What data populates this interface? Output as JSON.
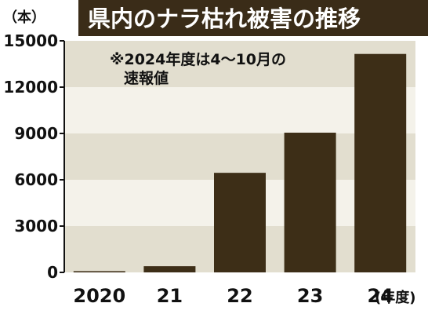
{
  "chart_data": {
    "type": "bar",
    "title": "県内のナラ枯れ被害の推移",
    "unit_label": "（本）",
    "x_unit_label": "(年度)",
    "categories": [
      "2020",
      "21",
      "22",
      "23",
      "24"
    ],
    "values": [
      80,
      400,
      6450,
      9050,
      14150
    ],
    "ylim": [
      0,
      15000
    ],
    "yticks": [
      0,
      3000,
      6000,
      9000,
      12000,
      15000
    ],
    "ytick_labels": [
      "0",
      "3000",
      "6000",
      "9000",
      "12000",
      "15000"
    ],
    "note_lines": [
      "※2024年度は4～10月の",
      "速報値"
    ],
    "grid": "alternating horizontal bands",
    "colors": {
      "bar": "#3d2e17",
      "band_dark": "#e2decf",
      "band_light": "#f4f2ea",
      "title_bg": "#3a2c18"
    }
  }
}
